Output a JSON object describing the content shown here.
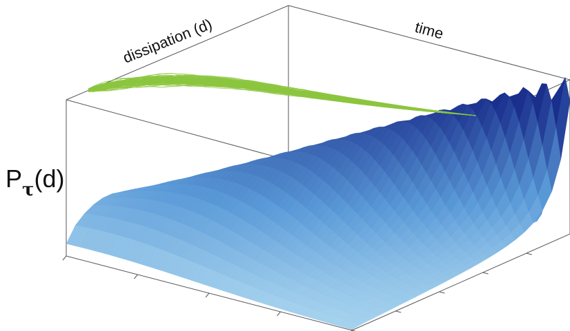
{
  "labels": {
    "dissipation": "dissipation (d)",
    "time": "time",
    "y_main": "P",
    "y_sub": "τ",
    "y_tail": "(d)"
  },
  "colors": {
    "trajectories": "#8cc63f",
    "surface_light": "#a8dcf0",
    "surface_dark": "#1a2e8c",
    "box": "#555555"
  },
  "trajectories": {
    "count": 110,
    "description_curve": "random walks converging to a point"
  },
  "surface": {
    "time_slices": 24,
    "d_samples": 60
  }
}
